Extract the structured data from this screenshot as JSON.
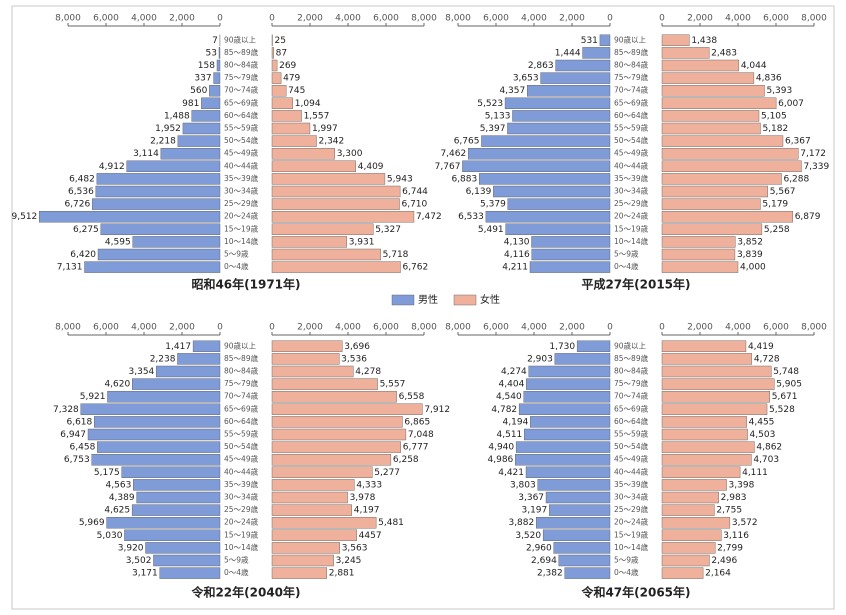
{
  "legend": {
    "series": [
      {
        "name": "男性",
        "color": "#7f9bd8"
      },
      {
        "name": "女性",
        "color": "#efb19b"
      }
    ]
  },
  "chart_data": [
    {
      "type": "pyramid",
      "title": "昭和46年(1971年)",
      "categories": [
        "90歳以上",
        "85〜89歳",
        "80〜84歳",
        "75〜79歳",
        "70〜74歳",
        "65〜69歳",
        "60〜64歳",
        "55〜59歳",
        "50〜54歳",
        "45〜49歳",
        "40〜44歳",
        "35〜39歳",
        "30〜34歳",
        "25〜29歳",
        "20〜24歳",
        "15〜19歳",
        "10〜14歳",
        "5〜9歳",
        "0〜4歳"
      ],
      "xlim": [
        0,
        8000
      ],
      "xticks": [
        0,
        {
          "value": 2000,
          "label": "2,000"
        },
        {
          "value": 4000,
          "label": "4,000"
        },
        {
          "value": 6000,
          "label": "6,000"
        },
        {
          "value": 8000,
          "label": "8,000"
        }
      ],
      "series": [
        {
          "values": [
            7,
            53,
            158,
            337,
            560,
            981,
            1488,
            1952,
            2218,
            3114,
            4912,
            6482,
            6536,
            6726,
            9512,
            6275,
            4595,
            6420,
            7131
          ],
          "value_labels": [
            "7",
            "53",
            "158",
            "337",
            "560",
            "981",
            "1,488",
            "1,952",
            "2,218",
            "3,114",
            "4,912",
            "6,482",
            "6,536",
            "6,726",
            "9,512",
            "6,275",
            "4,595",
            "6,420",
            "7,131"
          ]
        },
        {
          "values": [
            25,
            87,
            269,
            479,
            745,
            1094,
            1557,
            1997,
            2342,
            3300,
            4409,
            5943,
            6744,
            6710,
            7472,
            5327,
            3931,
            5718,
            6762
          ],
          "value_labels": [
            "25",
            "87",
            "269",
            "479",
            "745",
            "1,094",
            "1,557",
            "1,997",
            "2,342",
            "3,300",
            "4,409",
            "5,943",
            "6,744",
            "6,710",
            "7,472",
            "5,327",
            "3,931",
            "5,718",
            "6,762"
          ]
        }
      ]
    },
    {
      "type": "pyramid",
      "title": "平成27年(2015年)",
      "categories": [
        "90歳以上",
        "85〜89歳",
        "80〜84歳",
        "75〜79歳",
        "70〜74歳",
        "65〜69歳",
        "60〜64歳",
        "55〜59歳",
        "50〜54歳",
        "45〜49歳",
        "40〜44歳",
        "35〜39歳",
        "30〜34歳",
        "25〜29歳",
        "20〜24歳",
        "15〜19歳",
        "10〜14歳",
        "5〜9歳",
        "0〜4歳"
      ],
      "xlim": [
        0,
        8000
      ],
      "xticks": [
        0,
        {
          "value": 2000,
          "label": "2,000"
        },
        {
          "value": 4000,
          "label": "4,000"
        },
        {
          "value": 6000,
          "label": "6,000"
        },
        {
          "value": 8000,
          "label": "8,000"
        }
      ],
      "series": [
        {
          "values": [
            531,
            1444,
            2863,
            3653,
            4357,
            5523,
            5133,
            5397,
            6765,
            7462,
            7767,
            6883,
            6139,
            5379,
            6533,
            5491,
            4130,
            4116,
            4211
          ],
          "value_labels": [
            "531",
            "1,444",
            "2,863",
            "3,653",
            "4,357",
            "5,523",
            "5,133",
            "5,397",
            "6,765",
            "7,462",
            "7,767",
            "6,883",
            "6,139",
            "5,379",
            "6,533",
            "5,491",
            "4,130",
            "4,116",
            "4,211"
          ]
        },
        {
          "values": [
            1438,
            2483,
            4044,
            4836,
            5393,
            6007,
            5105,
            5182,
            6367,
            7172,
            7339,
            6288,
            5567,
            5179,
            6879,
            5258,
            3852,
            3839,
            4000
          ],
          "value_labels": [
            "1,438",
            "2,483",
            "4,044",
            "4,836",
            "5,393",
            "6,007",
            "5,105",
            "5,182",
            "6,367",
            "7,172",
            "7,339",
            "6,288",
            "5,567",
            "5,179",
            "6,879",
            "5,258",
            "3,852",
            "3,839",
            "4,000"
          ]
        }
      ]
    },
    {
      "type": "pyramid",
      "title": "令和22年(2040年)",
      "categories": [
        "90歳以上",
        "85〜89歳",
        "80〜84歳",
        "75〜79歳",
        "70〜74歳",
        "65〜69歳",
        "60〜64歳",
        "55〜59歳",
        "50〜54歳",
        "45〜49歳",
        "40〜44歳",
        "35〜39歳",
        "30〜34歳",
        "25〜29歳",
        "20〜24歳",
        "15〜19歳",
        "10〜14歳",
        "5〜9歳",
        "0〜4歳"
      ],
      "xlim": [
        0,
        8000
      ],
      "xticks": [
        0,
        {
          "value": 2000,
          "label": "2,000"
        },
        {
          "value": 4000,
          "label": "4,000"
        },
        {
          "value": 6000,
          "label": "6,000"
        },
        {
          "value": 8000,
          "label": "8,000"
        }
      ],
      "series": [
        {
          "values": [
            1417,
            2238,
            3354,
            4620,
            5921,
            7328,
            6618,
            6947,
            6458,
            6753,
            5175,
            4563,
            4389,
            4625,
            5969,
            5030,
            3920,
            3502,
            3171
          ],
          "value_labels": [
            "1,417",
            "2,238",
            "3,354",
            "4,620",
            "5,921",
            "7,328",
            "6,618",
            "6,947",
            "6,458",
            "6,753",
            "5,175",
            "4,563",
            "4,389",
            "4,625",
            "5,969",
            "5,030",
            "3,920",
            "3,502",
            "3,171"
          ]
        },
        {
          "values": [
            3696,
            3536,
            4278,
            5557,
            6558,
            7912,
            6865,
            7048,
            6777,
            6258,
            5277,
            4333,
            3978,
            4197,
            5481,
            4457,
            3563,
            3245,
            2881
          ],
          "value_labels": [
            "3,696",
            "3,536",
            "4,278",
            "5,557",
            "6,558",
            "7,912",
            "6,865",
            "7,048",
            "6,777",
            "6,258",
            "5,277",
            "4,333",
            "3,978",
            "4,197",
            "5,481",
            "4457",
            "3,563",
            "3,245",
            "2,881"
          ]
        }
      ]
    },
    {
      "type": "pyramid",
      "title": "令和47年(2065年)",
      "categories": [
        "90歳以上",
        "85〜89歳",
        "80〜84歳",
        "75〜79歳",
        "70〜74歳",
        "65〜69歳",
        "60〜64歳",
        "55〜59歳",
        "50〜54歳",
        "45〜49歳",
        "40〜44歳",
        "35〜39歳",
        "30〜34歳",
        "25〜29歳",
        "20〜24歳",
        "15〜19歳",
        "10〜14歳",
        "5〜9歳",
        "0〜4歳"
      ],
      "xlim": [
        0,
        8000
      ],
      "xticks": [
        0,
        {
          "value": 2000,
          "label": "2,000"
        },
        {
          "value": 4000,
          "label": "4,000"
        },
        {
          "value": 6000,
          "label": "6,000"
        },
        {
          "value": 8000,
          "label": "8,000"
        }
      ],
      "series": [
        {
          "values": [
            1730,
            2903,
            4274,
            4404,
            4540,
            4782,
            4194,
            4511,
            4940,
            4986,
            4421,
            3803,
            3367,
            3197,
            3882,
            3520,
            2960,
            2694,
            2382
          ],
          "value_labels": [
            "1,730",
            "2,903",
            "4,274",
            "4,404",
            "4,540",
            "4,782",
            "4,194",
            "4,511",
            "4,940",
            "4,986",
            "4,421",
            "3,803",
            "3,367",
            "3,197",
            "3,882",
            "3,520",
            "2,960",
            "2,694",
            "2,382"
          ]
        },
        {
          "values": [
            4419,
            4728,
            5748,
            5905,
            5671,
            5528,
            4455,
            4503,
            4862,
            4703,
            4111,
            3398,
            2983,
            2755,
            3572,
            3116,
            2799,
            2496,
            2164
          ],
          "value_labels": [
            "4,419",
            "4,728",
            "5,748",
            "5,905",
            "5,671",
            "5,528",
            "4,455",
            "4,503",
            "4,862",
            "4,703",
            "4,111",
            "3,398",
            "2,983",
            "2,755",
            "3,572",
            "3,116",
            "2,799",
            "2,496",
            "2,164"
          ]
        }
      ]
    }
  ]
}
